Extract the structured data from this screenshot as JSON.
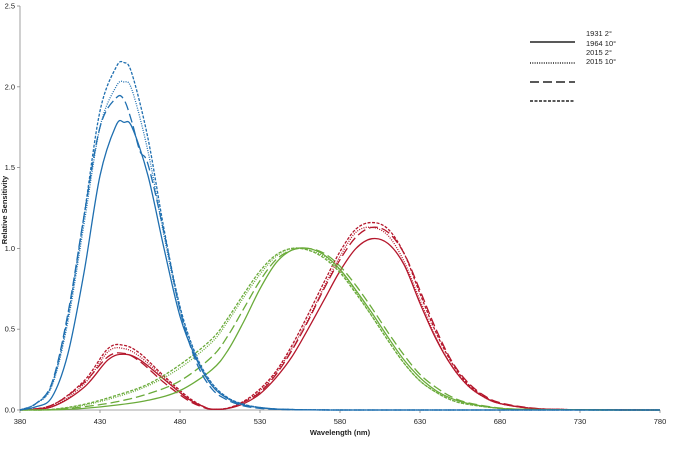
{
  "chart_data": {
    "type": "line",
    "title": "",
    "xlabel": "Wavelength (nm)",
    "ylabel": "Relative Sensitivity",
    "xlim": [
      380,
      780
    ],
    "ylim": [
      0,
      2.5
    ],
    "x_ticks": [
      380,
      430,
      480,
      530,
      580,
      630,
      680,
      730,
      780
    ],
    "y_ticks": [
      0.0,
      0.5,
      1.0,
      1.5,
      2.0,
      2.5
    ],
    "x_tick_labels": [
      "380",
      "430",
      "480",
      "530",
      "580",
      "630",
      "680",
      "730",
      "780"
    ],
    "y_tick_labels": [
      "0.0",
      "0.5",
      "1.0",
      "1.5",
      "2.0",
      "2.5"
    ],
    "grid": false,
    "legend_position": "top-right",
    "legend": [
      {
        "label": "1931 2°",
        "dash": "solid"
      },
      {
        "label": "1964 10°",
        "dash": "dotted"
      },
      {
        "label": "2015 2°",
        "dash": "long-dash"
      },
      {
        "label": "2015 10°",
        "dash": "short-dash"
      }
    ],
    "colors": {
      "red": "#b5172c",
      "green": "#6aab3a",
      "blue": "#1f6fb0",
      "axis": "#888888"
    },
    "series": [
      {
        "color": "red",
        "dash": "solid",
        "x": [
          380,
          400,
          420,
          435,
          445,
          455,
          470,
          485,
          495,
          500,
          510,
          520,
          530,
          540,
          550,
          560,
          570,
          580,
          590,
          600,
          610,
          620,
          630,
          640,
          650,
          660,
          670,
          680,
          700,
          720,
          740,
          780
        ],
        "values": [
          0,
          0.02,
          0.14,
          0.31,
          0.345,
          0.31,
          0.19,
          0.07,
          0.02,
          0.005,
          0.01,
          0.04,
          0.1,
          0.2,
          0.33,
          0.5,
          0.68,
          0.86,
          1.0,
          1.06,
          1.03,
          0.9,
          0.66,
          0.44,
          0.27,
          0.15,
          0.08,
          0.04,
          0.01,
          0.003,
          0.001,
          0
        ]
      },
      {
        "color": "red",
        "dash": "dotted",
        "x": [
          380,
          400,
          420,
          435,
          445,
          455,
          470,
          485,
          495,
          500,
          510,
          520,
          530,
          540,
          550,
          560,
          570,
          580,
          590,
          600,
          610,
          620,
          630,
          640,
          650,
          660,
          670,
          680,
          700,
          720,
          740,
          780
        ],
        "values": [
          0,
          0.02,
          0.16,
          0.36,
          0.38,
          0.33,
          0.2,
          0.07,
          0.02,
          0.005,
          0.01,
          0.05,
          0.12,
          0.23,
          0.38,
          0.56,
          0.76,
          0.95,
          1.1,
          1.13,
          1.08,
          0.92,
          0.68,
          0.45,
          0.27,
          0.15,
          0.08,
          0.04,
          0.01,
          0.003,
          0.001,
          0
        ]
      },
      {
        "color": "red",
        "dash": "long-dash",
        "x": [
          380,
          400,
          420,
          435,
          445,
          455,
          470,
          485,
          495,
          500,
          510,
          520,
          530,
          540,
          550,
          560,
          570,
          580,
          590,
          600,
          610,
          620,
          630,
          640,
          650,
          660,
          670,
          680,
          700,
          720,
          740,
          780
        ],
        "values": [
          0,
          0.03,
          0.17,
          0.33,
          0.35,
          0.3,
          0.17,
          0.06,
          0.015,
          0.005,
          0.01,
          0.05,
          0.11,
          0.22,
          0.37,
          0.55,
          0.75,
          0.93,
          1.07,
          1.13,
          1.1,
          0.97,
          0.74,
          0.5,
          0.3,
          0.17,
          0.09,
          0.045,
          0.012,
          0.003,
          0.001,
          0
        ]
      },
      {
        "color": "red",
        "dash": "short-dash",
        "x": [
          380,
          400,
          420,
          435,
          445,
          455,
          470,
          485,
          495,
          500,
          510,
          520,
          530,
          540,
          550,
          560,
          570,
          580,
          590,
          600,
          610,
          620,
          630,
          640,
          650,
          660,
          670,
          680,
          700,
          720,
          740,
          780
        ],
        "values": [
          0,
          0.03,
          0.18,
          0.38,
          0.4,
          0.35,
          0.21,
          0.08,
          0.02,
          0.005,
          0.012,
          0.055,
          0.13,
          0.24,
          0.4,
          0.59,
          0.79,
          0.98,
          1.12,
          1.16,
          1.12,
          0.97,
          0.72,
          0.48,
          0.29,
          0.16,
          0.085,
          0.04,
          0.01,
          0.003,
          0.001,
          0
        ]
      },
      {
        "color": "green",
        "dash": "solid",
        "x": [
          380,
          400,
          420,
          440,
          460,
          480,
          500,
          510,
          520,
          530,
          540,
          550,
          560,
          570,
          580,
          590,
          600,
          610,
          620,
          630,
          640,
          650,
          660,
          680,
          700,
          740,
          780
        ],
        "values": [
          0,
          0.001,
          0.01,
          0.03,
          0.06,
          0.12,
          0.25,
          0.37,
          0.55,
          0.75,
          0.91,
          0.99,
          1.0,
          0.96,
          0.87,
          0.74,
          0.6,
          0.45,
          0.31,
          0.2,
          0.12,
          0.07,
          0.04,
          0.01,
          0.003,
          0.0005,
          0
        ]
      },
      {
        "color": "green",
        "dash": "dotted",
        "x": [
          380,
          400,
          420,
          440,
          460,
          480,
          500,
          510,
          520,
          530,
          540,
          550,
          560,
          570,
          580,
          590,
          600,
          610,
          620,
          630,
          640,
          650,
          660,
          680,
          700,
          740,
          780
        ],
        "values": [
          0,
          0.003,
          0.03,
          0.08,
          0.15,
          0.26,
          0.42,
          0.55,
          0.7,
          0.84,
          0.95,
          1.0,
          0.99,
          0.95,
          0.86,
          0.73,
          0.58,
          0.43,
          0.29,
          0.18,
          0.11,
          0.06,
          0.035,
          0.01,
          0.003,
          0.0005,
          0
        ]
      },
      {
        "color": "green",
        "dash": "long-dash",
        "x": [
          380,
          400,
          420,
          440,
          460,
          480,
          500,
          510,
          520,
          530,
          540,
          550,
          560,
          570,
          580,
          590,
          600,
          610,
          620,
          630,
          640,
          650,
          660,
          680,
          700,
          740,
          780
        ],
        "values": [
          0,
          0.002,
          0.02,
          0.05,
          0.1,
          0.18,
          0.33,
          0.46,
          0.63,
          0.8,
          0.93,
          0.99,
          1.0,
          0.97,
          0.89,
          0.77,
          0.63,
          0.48,
          0.34,
          0.22,
          0.14,
          0.08,
          0.045,
          0.012,
          0.003,
          0.0005,
          0
        ]
      },
      {
        "color": "green",
        "dash": "short-dash",
        "x": [
          380,
          400,
          420,
          440,
          460,
          480,
          500,
          510,
          520,
          530,
          540,
          550,
          560,
          570,
          580,
          590,
          600,
          610,
          620,
          630,
          640,
          650,
          660,
          680,
          700,
          740,
          780
        ],
        "values": [
          0,
          0.004,
          0.035,
          0.09,
          0.16,
          0.28,
          0.44,
          0.57,
          0.72,
          0.86,
          0.96,
          1.0,
          0.99,
          0.94,
          0.85,
          0.72,
          0.58,
          0.43,
          0.29,
          0.18,
          0.11,
          0.06,
          0.035,
          0.01,
          0.003,
          0.0005,
          0
        ]
      },
      {
        "color": "blue",
        "dash": "solid",
        "x": [
          380,
          390,
          400,
          410,
          420,
          430,
          440,
          445,
          450,
          460,
          470,
          480,
          490,
          500,
          510,
          520,
          530,
          540,
          550,
          560,
          580,
          600,
          780
        ],
        "values": [
          0,
          0.02,
          0.08,
          0.35,
          0.85,
          1.45,
          1.76,
          1.78,
          1.75,
          1.45,
          1.0,
          0.58,
          0.32,
          0.15,
          0.07,
          0.03,
          0.015,
          0.006,
          0.003,
          0.001,
          0,
          0,
          0
        ]
      },
      {
        "color": "blue",
        "dash": "dotted",
        "x": [
          380,
          390,
          400,
          410,
          420,
          430,
          440,
          445,
          450,
          460,
          470,
          480,
          490,
          500,
          510,
          520,
          530,
          540,
          550,
          560,
          580,
          600,
          780
        ],
        "values": [
          0,
          0.04,
          0.15,
          0.55,
          1.15,
          1.75,
          2.0,
          2.03,
          1.98,
          1.6,
          1.08,
          0.62,
          0.33,
          0.16,
          0.075,
          0.035,
          0.015,
          0.006,
          0.003,
          0.001,
          0,
          0,
          0
        ]
      },
      {
        "color": "blue",
        "dash": "long-dash",
        "x": [
          380,
          390,
          400,
          410,
          420,
          430,
          440,
          445,
          450,
          455,
          460,
          470,
          480,
          490,
          500,
          510,
          520,
          530,
          540,
          550,
          560,
          580,
          600,
          780
        ],
        "values": [
          0,
          0.04,
          0.17,
          0.6,
          1.2,
          1.75,
          1.93,
          1.92,
          1.78,
          1.6,
          1.52,
          1.1,
          0.62,
          0.3,
          0.13,
          0.06,
          0.025,
          0.01,
          0.004,
          0.002,
          0.001,
          0,
          0,
          0
        ]
      },
      {
        "color": "blue",
        "dash": "short-dash",
        "x": [
          380,
          390,
          400,
          410,
          420,
          430,
          440,
          445,
          450,
          460,
          470,
          480,
          490,
          500,
          510,
          520,
          530,
          540,
          550,
          560,
          580,
          600,
          780
        ],
        "values": [
          0,
          0.04,
          0.16,
          0.58,
          1.2,
          1.85,
          2.12,
          2.15,
          2.08,
          1.68,
          1.12,
          0.64,
          0.34,
          0.165,
          0.075,
          0.035,
          0.015,
          0.006,
          0.003,
          0.001,
          0,
          0,
          0
        ]
      }
    ]
  }
}
